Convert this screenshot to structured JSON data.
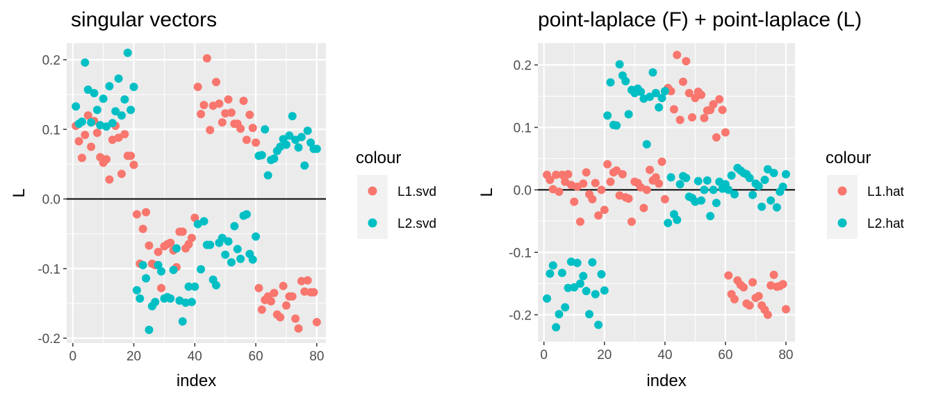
{
  "colors": {
    "series1": "#F8766D",
    "series2": "#00BFC4",
    "panel": "#EBEBEB",
    "grid": "#FFFFFF",
    "zero_line": "#000000",
    "tick_text": "#4D4D4D"
  },
  "chart_data": [
    {
      "type": "scatter",
      "title": "singular vectors",
      "xlabel": "index",
      "ylabel": "L",
      "xlim": [
        -2,
        83
      ],
      "ylim": [
        -0.207,
        0.224
      ],
      "xticks": [
        0,
        20,
        40,
        60,
        80
      ],
      "xtick_labels": [
        "0",
        "20",
        "40",
        "60",
        "80"
      ],
      "yticks": [
        -0.2,
        -0.1,
        0.0,
        0.1,
        0.2
      ],
      "ytick_labels": [
        "-0.2",
        "-0.1",
        "0.0",
        "0.1",
        "0.2"
      ],
      "hline": 0,
      "grid": true,
      "legend_title": "colour",
      "legend_position": "right",
      "series": [
        {
          "name": "L1.svd",
          "color": "#F8766D",
          "x": [
            1,
            2,
            3,
            4,
            5,
            6,
            7,
            8,
            9,
            10,
            11,
            12,
            13,
            14,
            15,
            16,
            17,
            18,
            19,
            20,
            21,
            22,
            23,
            24,
            25,
            26,
            27,
            28,
            29,
            30,
            31,
            32,
            33,
            34,
            35,
            36,
            37,
            38,
            39,
            40,
            41,
            42,
            43,
            44,
            45,
            46,
            47,
            48,
            49,
            50,
            51,
            52,
            53,
            54,
            55,
            56,
            57,
            58,
            59,
            60,
            61,
            62,
            63,
            64,
            65,
            66,
            67,
            68,
            69,
            70,
            71,
            72,
            73,
            74,
            75,
            76,
            77,
            78,
            79,
            80
          ],
          "y": [
            0.105,
            0.083,
            0.059,
            0.092,
            0.12,
            0.075,
            0.112,
            0.095,
            0.06,
            0.052,
            0.057,
            0.028,
            0.085,
            0.105,
            0.088,
            0.036,
            0.093,
            0.062,
            0.062,
            0.049,
            -0.022,
            -0.093,
            -0.043,
            -0.019,
            -0.067,
            -0.093,
            -0.095,
            -0.076,
            -0.128,
            -0.068,
            -0.065,
            -0.063,
            -0.074,
            -0.098,
            -0.047,
            -0.047,
            -0.071,
            -0.065,
            -0.056,
            -0.027,
            0.161,
            0.122,
            0.135,
            0.202,
            0.099,
            0.134,
            0.168,
            0.137,
            0.11,
            0.123,
            0.143,
            0.124,
            0.108,
            0.108,
            0.101,
            0.141,
            0.085,
            0.121,
            0.102,
            0.081,
            -0.128,
            -0.159,
            -0.145,
            -0.14,
            -0.147,
            -0.135,
            -0.166,
            -0.17,
            -0.125,
            -0.153,
            -0.14,
            -0.14,
            -0.172,
            -0.186,
            -0.118,
            -0.133,
            -0.117,
            -0.134,
            -0.134,
            -0.177
          ]
        },
        {
          "name": "L2.svd",
          "color": "#00BFC4",
          "x": [
            1,
            2,
            3,
            4,
            5,
            6,
            7,
            8,
            9,
            10,
            11,
            12,
            13,
            14,
            15,
            16,
            17,
            18,
            19,
            20,
            21,
            22,
            23,
            24,
            25,
            26,
            27,
            28,
            29,
            30,
            31,
            32,
            33,
            34,
            35,
            36,
            37,
            38,
            39,
            40,
            41,
            42,
            43,
            44,
            45,
            46,
            47,
            48,
            49,
            50,
            51,
            52,
            53,
            54,
            55,
            56,
            57,
            58,
            59,
            60,
            61,
            62,
            63,
            64,
            65,
            66,
            67,
            68,
            69,
            70,
            71,
            72,
            73,
            74,
            75,
            76,
            77,
            78,
            79,
            80
          ],
          "y": [
            0.133,
            0.108,
            0.111,
            0.196,
            0.157,
            0.11,
            0.152,
            0.128,
            0.106,
            0.144,
            0.104,
            0.162,
            0.109,
            0.126,
            0.173,
            0.12,
            0.143,
            0.21,
            0.128,
            0.161,
            -0.131,
            -0.143,
            -0.095,
            -0.114,
            -0.188,
            -0.154,
            -0.148,
            -0.095,
            -0.104,
            -0.143,
            -0.141,
            -0.143,
            -0.102,
            -0.071,
            -0.146,
            -0.176,
            -0.149,
            -0.126,
            -0.148,
            -0.126,
            -0.036,
            -0.101,
            -0.032,
            -0.066,
            -0.066,
            -0.116,
            -0.124,
            -0.063,
            -0.056,
            -0.08,
            -0.061,
            -0.091,
            -0.039,
            -0.072,
            -0.086,
            -0.024,
            -0.022,
            -0.079,
            -0.087,
            -0.054,
            0.062,
            0.063,
            0.1,
            0.034,
            0.056,
            0.058,
            0.069,
            0.075,
            0.086,
            0.078,
            0.091,
            0.119,
            0.085,
            0.074,
            0.089,
            0.048,
            0.098,
            0.081,
            0.072,
            0.072
          ]
        }
      ]
    },
    {
      "type": "scatter",
      "title": "point-laplace (F) + point-laplace (L)",
      "xlabel": "index",
      "ylabel": "L",
      "xlim": [
        -2,
        83
      ],
      "ylim": [
        -0.243,
        0.235
      ],
      "xticks": [
        0,
        20,
        40,
        60,
        80
      ],
      "xtick_labels": [
        "0",
        "20",
        "40",
        "60",
        "80"
      ],
      "yticks": [
        -0.2,
        -0.1,
        0.0,
        0.1,
        0.2
      ],
      "ytick_labels": [
        "-0.2",
        "-0.1",
        "0.0",
        "0.1",
        "0.2"
      ],
      "hline": 0,
      "grid": true,
      "legend_title": "colour",
      "legend_position": "right",
      "series": [
        {
          "name": "L1.hat",
          "color": "#F8766D",
          "x": [
            1,
            2,
            3,
            4,
            5,
            6,
            7,
            8,
            9,
            10,
            11,
            12,
            13,
            14,
            15,
            16,
            17,
            18,
            19,
            20,
            21,
            22,
            23,
            24,
            25,
            26,
            27,
            28,
            29,
            30,
            31,
            32,
            33,
            34,
            35,
            36,
            37,
            38,
            39,
            40,
            41,
            42,
            43,
            44,
            45,
            46,
            47,
            48,
            49,
            50,
            51,
            52,
            53,
            54,
            55,
            56,
            57,
            58,
            59,
            60,
            61,
            62,
            63,
            64,
            65,
            66,
            67,
            68,
            69,
            70,
            71,
            72,
            73,
            74,
            75,
            76,
            77,
            78,
            79,
            80
          ],
          "y": [
            0.024,
            0.016,
            0.001,
            0.024,
            -0.003,
            0.024,
            0.013,
            0.025,
            0.008,
            -0.019,
            0.005,
            -0.051,
            0.01,
            0.028,
            -0.007,
            -0.015,
            0.011,
            -0.041,
            0.0,
            -0.032,
            0.041,
            0.013,
            0.028,
            0.031,
            -0.009,
            0.025,
            -0.012,
            -0.014,
            -0.051,
            0.013,
            0.011,
            0.004,
            -0.029,
            0.0,
            0.032,
            0.015,
            0.02,
            0.01,
            0.045,
            -0.015,
            0.163,
            0.158,
            0.129,
            0.216,
            0.112,
            0.173,
            0.206,
            0.155,
            0.116,
            0.147,
            0.157,
            0.152,
            0.115,
            0.127,
            0.128,
            0.137,
            0.084,
            0.145,
            0.128,
            0.092,
            -0.137,
            -0.167,
            -0.175,
            -0.145,
            -0.152,
            -0.156,
            -0.182,
            -0.185,
            -0.148,
            -0.173,
            -0.17,
            -0.185,
            -0.192,
            -0.2,
            -0.153,
            -0.136,
            -0.155,
            -0.154,
            -0.151,
            -0.191
          ]
        },
        {
          "name": "L2.hat",
          "color": "#00BFC4",
          "x": [
            1,
            2,
            3,
            4,
            5,
            6,
            7,
            8,
            9,
            10,
            11,
            12,
            13,
            14,
            15,
            16,
            17,
            18,
            19,
            20,
            21,
            22,
            23,
            24,
            25,
            26,
            27,
            28,
            29,
            30,
            31,
            32,
            33,
            34,
            35,
            36,
            37,
            38,
            39,
            40,
            41,
            42,
            43,
            44,
            45,
            46,
            47,
            48,
            49,
            50,
            51,
            52,
            53,
            54,
            55,
            56,
            57,
            58,
            59,
            60,
            61,
            62,
            63,
            64,
            65,
            66,
            67,
            68,
            69,
            70,
            71,
            72,
            73,
            74,
            75,
            76,
            77,
            78,
            79,
            80
          ],
          "y": [
            -0.174,
            -0.134,
            -0.121,
            -0.22,
            -0.199,
            -0.133,
            -0.188,
            -0.157,
            -0.115,
            -0.156,
            -0.117,
            -0.15,
            -0.138,
            -0.162,
            -0.199,
            -0.116,
            -0.167,
            -0.216,
            -0.135,
            -0.161,
            0.119,
            0.172,
            0.104,
            0.103,
            0.201,
            0.183,
            0.174,
            0.121,
            0.16,
            0.155,
            0.162,
            0.157,
            0.146,
            0.073,
            0.149,
            0.188,
            0.155,
            0.132,
            0.147,
            0.158,
            -0.053,
            0.02,
            -0.039,
            -0.048,
            0.009,
            0.022,
            0.019,
            -0.011,
            -0.013,
            -0.019,
            0.014,
            -0.017,
            0.0,
            0.015,
            -0.042,
            0.0,
            -0.021,
            0.013,
            0.002,
            0.009,
            0.0,
            0.023,
            -0.007,
            0.035,
            0.031,
            0.027,
            0.025,
            0.019,
            -0.008,
            0.01,
            0.006,
            -0.027,
            0.016,
            0.033,
            -0.017,
            0.027,
            -0.028,
            -0.003,
            0.005,
            0.025
          ]
        }
      ]
    }
  ]
}
